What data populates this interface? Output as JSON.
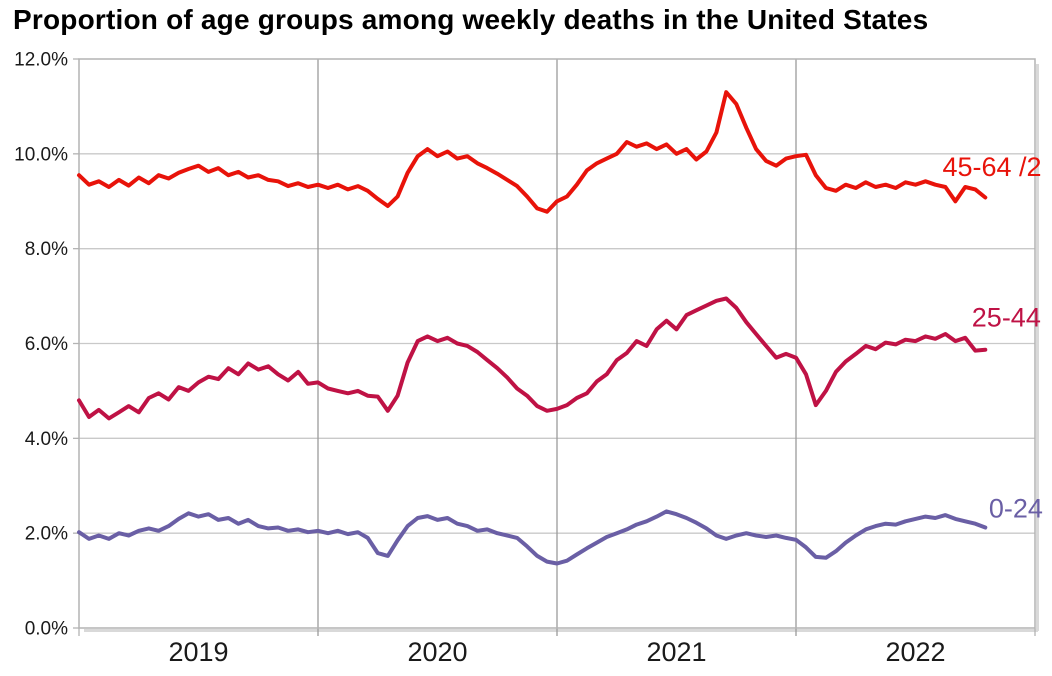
{
  "title": "Proportion of age groups among weekly deaths in the United States",
  "colors": {
    "series_45_64": "#e8130a",
    "series_25_44": "#bf1245",
    "series_0_24": "#6a5fa5",
    "h_gridline": "#c9c9c9",
    "v_gridline": "#9b9b9b",
    "plot_border": "#b3b3b3",
    "border_shadow": "#d9d9d9",
    "tick_label": "#1a1a1a",
    "title_text": "#000000"
  },
  "chart_data": {
    "type": "line",
    "title": "Proportion of age groups among weekly deaths in the United States",
    "xlabel": "",
    "ylabel": "",
    "x_unit": "calendar year (weekly samples)",
    "y_unit": "percent of weekly deaths",
    "xlim": [
      2019,
      2023
    ],
    "ylim_percent": [
      0,
      12
    ],
    "y_tick_step": 2,
    "y_tick_labels": [
      "0.0%",
      "2.0%",
      "4.0%",
      "6.0%",
      "8.0%",
      "10.0%",
      "12.0%"
    ],
    "x_tick_labels": [
      "2019",
      "2020",
      "2021",
      "2022"
    ],
    "x_gridlines_at": [
      2020,
      2021,
      2022
    ],
    "grid": true,
    "legend_position": "labels-at-line-ends",
    "x": [
      2019.0,
      2019.042,
      2019.083,
      2019.125,
      2019.167,
      2019.208,
      2019.25,
      2019.292,
      2019.333,
      2019.375,
      2019.417,
      2019.458,
      2019.5,
      2019.542,
      2019.583,
      2019.625,
      2019.667,
      2019.708,
      2019.75,
      2019.792,
      2019.833,
      2019.875,
      2019.917,
      2019.958,
      2020.0,
      2020.042,
      2020.083,
      2020.125,
      2020.167,
      2020.208,
      2020.25,
      2020.292,
      2020.333,
      2020.375,
      2020.417,
      2020.458,
      2020.5,
      2020.542,
      2020.583,
      2020.625,
      2020.667,
      2020.708,
      2020.75,
      2020.792,
      2020.833,
      2020.875,
      2020.917,
      2020.958,
      2021.0,
      2021.042,
      2021.083,
      2021.125,
      2021.167,
      2021.208,
      2021.25,
      2021.292,
      2021.333,
      2021.375,
      2021.417,
      2021.458,
      2021.5,
      2021.542,
      2021.583,
      2021.625,
      2021.667,
      2021.708,
      2021.75,
      2021.792,
      2021.833,
      2021.875,
      2021.917,
      2021.958,
      2022.0,
      2022.042,
      2022.083,
      2022.125,
      2022.167,
      2022.208,
      2022.25,
      2022.292,
      2022.333,
      2022.375,
      2022.417,
      2022.458,
      2022.5,
      2022.542,
      2022.583,
      2022.625,
      2022.667,
      2022.708,
      2022.75,
      2022.792
    ],
    "series": [
      {
        "name": "45-64 /2",
        "color": "#e8130a",
        "values": [
          9.55,
          9.35,
          9.42,
          9.3,
          9.45,
          9.33,
          9.5,
          9.38,
          9.55,
          9.48,
          9.6,
          9.68,
          9.75,
          9.62,
          9.7,
          9.55,
          9.62,
          9.5,
          9.55,
          9.45,
          9.42,
          9.32,
          9.38,
          9.3,
          9.35,
          9.28,
          9.35,
          9.25,
          9.32,
          9.22,
          9.05,
          8.9,
          9.1,
          9.6,
          9.95,
          10.1,
          9.95,
          10.05,
          9.9,
          9.95,
          9.8,
          9.7,
          9.58,
          9.45,
          9.32,
          9.1,
          8.85,
          8.78,
          9.0,
          9.1,
          9.35,
          9.65,
          9.8,
          9.9,
          10.0,
          10.25,
          10.15,
          10.22,
          10.1,
          10.2,
          10.0,
          10.1,
          9.88,
          10.05,
          10.45,
          11.3,
          11.05,
          10.55,
          10.1,
          9.85,
          9.75,
          9.9,
          9.95,
          9.98,
          9.55,
          9.28,
          9.22,
          9.35,
          9.28,
          9.4,
          9.3,
          9.35,
          9.28,
          9.4,
          9.35,
          9.42,
          9.35,
          9.3,
          9.0,
          9.3,
          9.25,
          9.08
        ]
      },
      {
        "name": "25-44",
        "color": "#bf1245",
        "values": [
          4.8,
          4.45,
          4.6,
          4.42,
          4.55,
          4.68,
          4.55,
          4.85,
          4.95,
          4.82,
          5.08,
          5.0,
          5.18,
          5.3,
          5.25,
          5.48,
          5.35,
          5.58,
          5.45,
          5.52,
          5.35,
          5.22,
          5.4,
          5.15,
          5.18,
          5.05,
          5.0,
          4.95,
          5.0,
          4.9,
          4.88,
          4.58,
          4.9,
          5.6,
          6.05,
          6.15,
          6.05,
          6.12,
          6.0,
          5.95,
          5.82,
          5.65,
          5.48,
          5.28,
          5.05,
          4.9,
          4.68,
          4.58,
          4.62,
          4.7,
          4.85,
          4.95,
          5.2,
          5.35,
          5.65,
          5.8,
          6.05,
          5.95,
          6.3,
          6.48,
          6.3,
          6.6,
          6.7,
          6.8,
          6.9,
          6.95,
          6.75,
          6.45,
          6.2,
          5.95,
          5.7,
          5.78,
          5.7,
          5.35,
          4.7,
          5.0,
          5.4,
          5.62,
          5.78,
          5.95,
          5.88,
          6.02,
          5.98,
          6.08,
          6.05,
          6.15,
          6.1,
          6.2,
          6.05,
          6.12,
          5.85,
          5.87
        ]
      },
      {
        "name": "0-24",
        "color": "#6a5fa5",
        "values": [
          2.02,
          1.88,
          1.95,
          1.88,
          2.0,
          1.95,
          2.05,
          2.1,
          2.05,
          2.15,
          2.3,
          2.42,
          2.35,
          2.4,
          2.28,
          2.32,
          2.2,
          2.28,
          2.15,
          2.1,
          2.12,
          2.05,
          2.08,
          2.02,
          2.05,
          2.0,
          2.05,
          1.98,
          2.02,
          1.9,
          1.58,
          1.52,
          1.85,
          2.15,
          2.32,
          2.36,
          2.28,
          2.32,
          2.2,
          2.15,
          2.05,
          2.08,
          2.0,
          1.95,
          1.9,
          1.72,
          1.52,
          1.4,
          1.36,
          1.42,
          1.55,
          1.68,
          1.8,
          1.92,
          2.0,
          2.08,
          2.18,
          2.25,
          2.35,
          2.46,
          2.4,
          2.32,
          2.22,
          2.1,
          1.95,
          1.88,
          1.95,
          2.0,
          1.95,
          1.92,
          1.95,
          1.9,
          1.86,
          1.7,
          1.5,
          1.48,
          1.62,
          1.8,
          1.95,
          2.08,
          2.15,
          2.2,
          2.18,
          2.25,
          2.3,
          2.35,
          2.32,
          2.38,
          2.3,
          2.25,
          2.2,
          2.12
        ]
      }
    ],
    "annotations": [
      {
        "text": "45-64 /2",
        "color": "#e8130a",
        "x": 2022.82,
        "y": 9.72
      },
      {
        "text": "25-44",
        "color": "#bf1245",
        "x": 2022.88,
        "y": 6.55
      },
      {
        "text": "0-24",
        "color": "#6a5fa5",
        "x": 2022.92,
        "y": 2.52
      }
    ]
  }
}
